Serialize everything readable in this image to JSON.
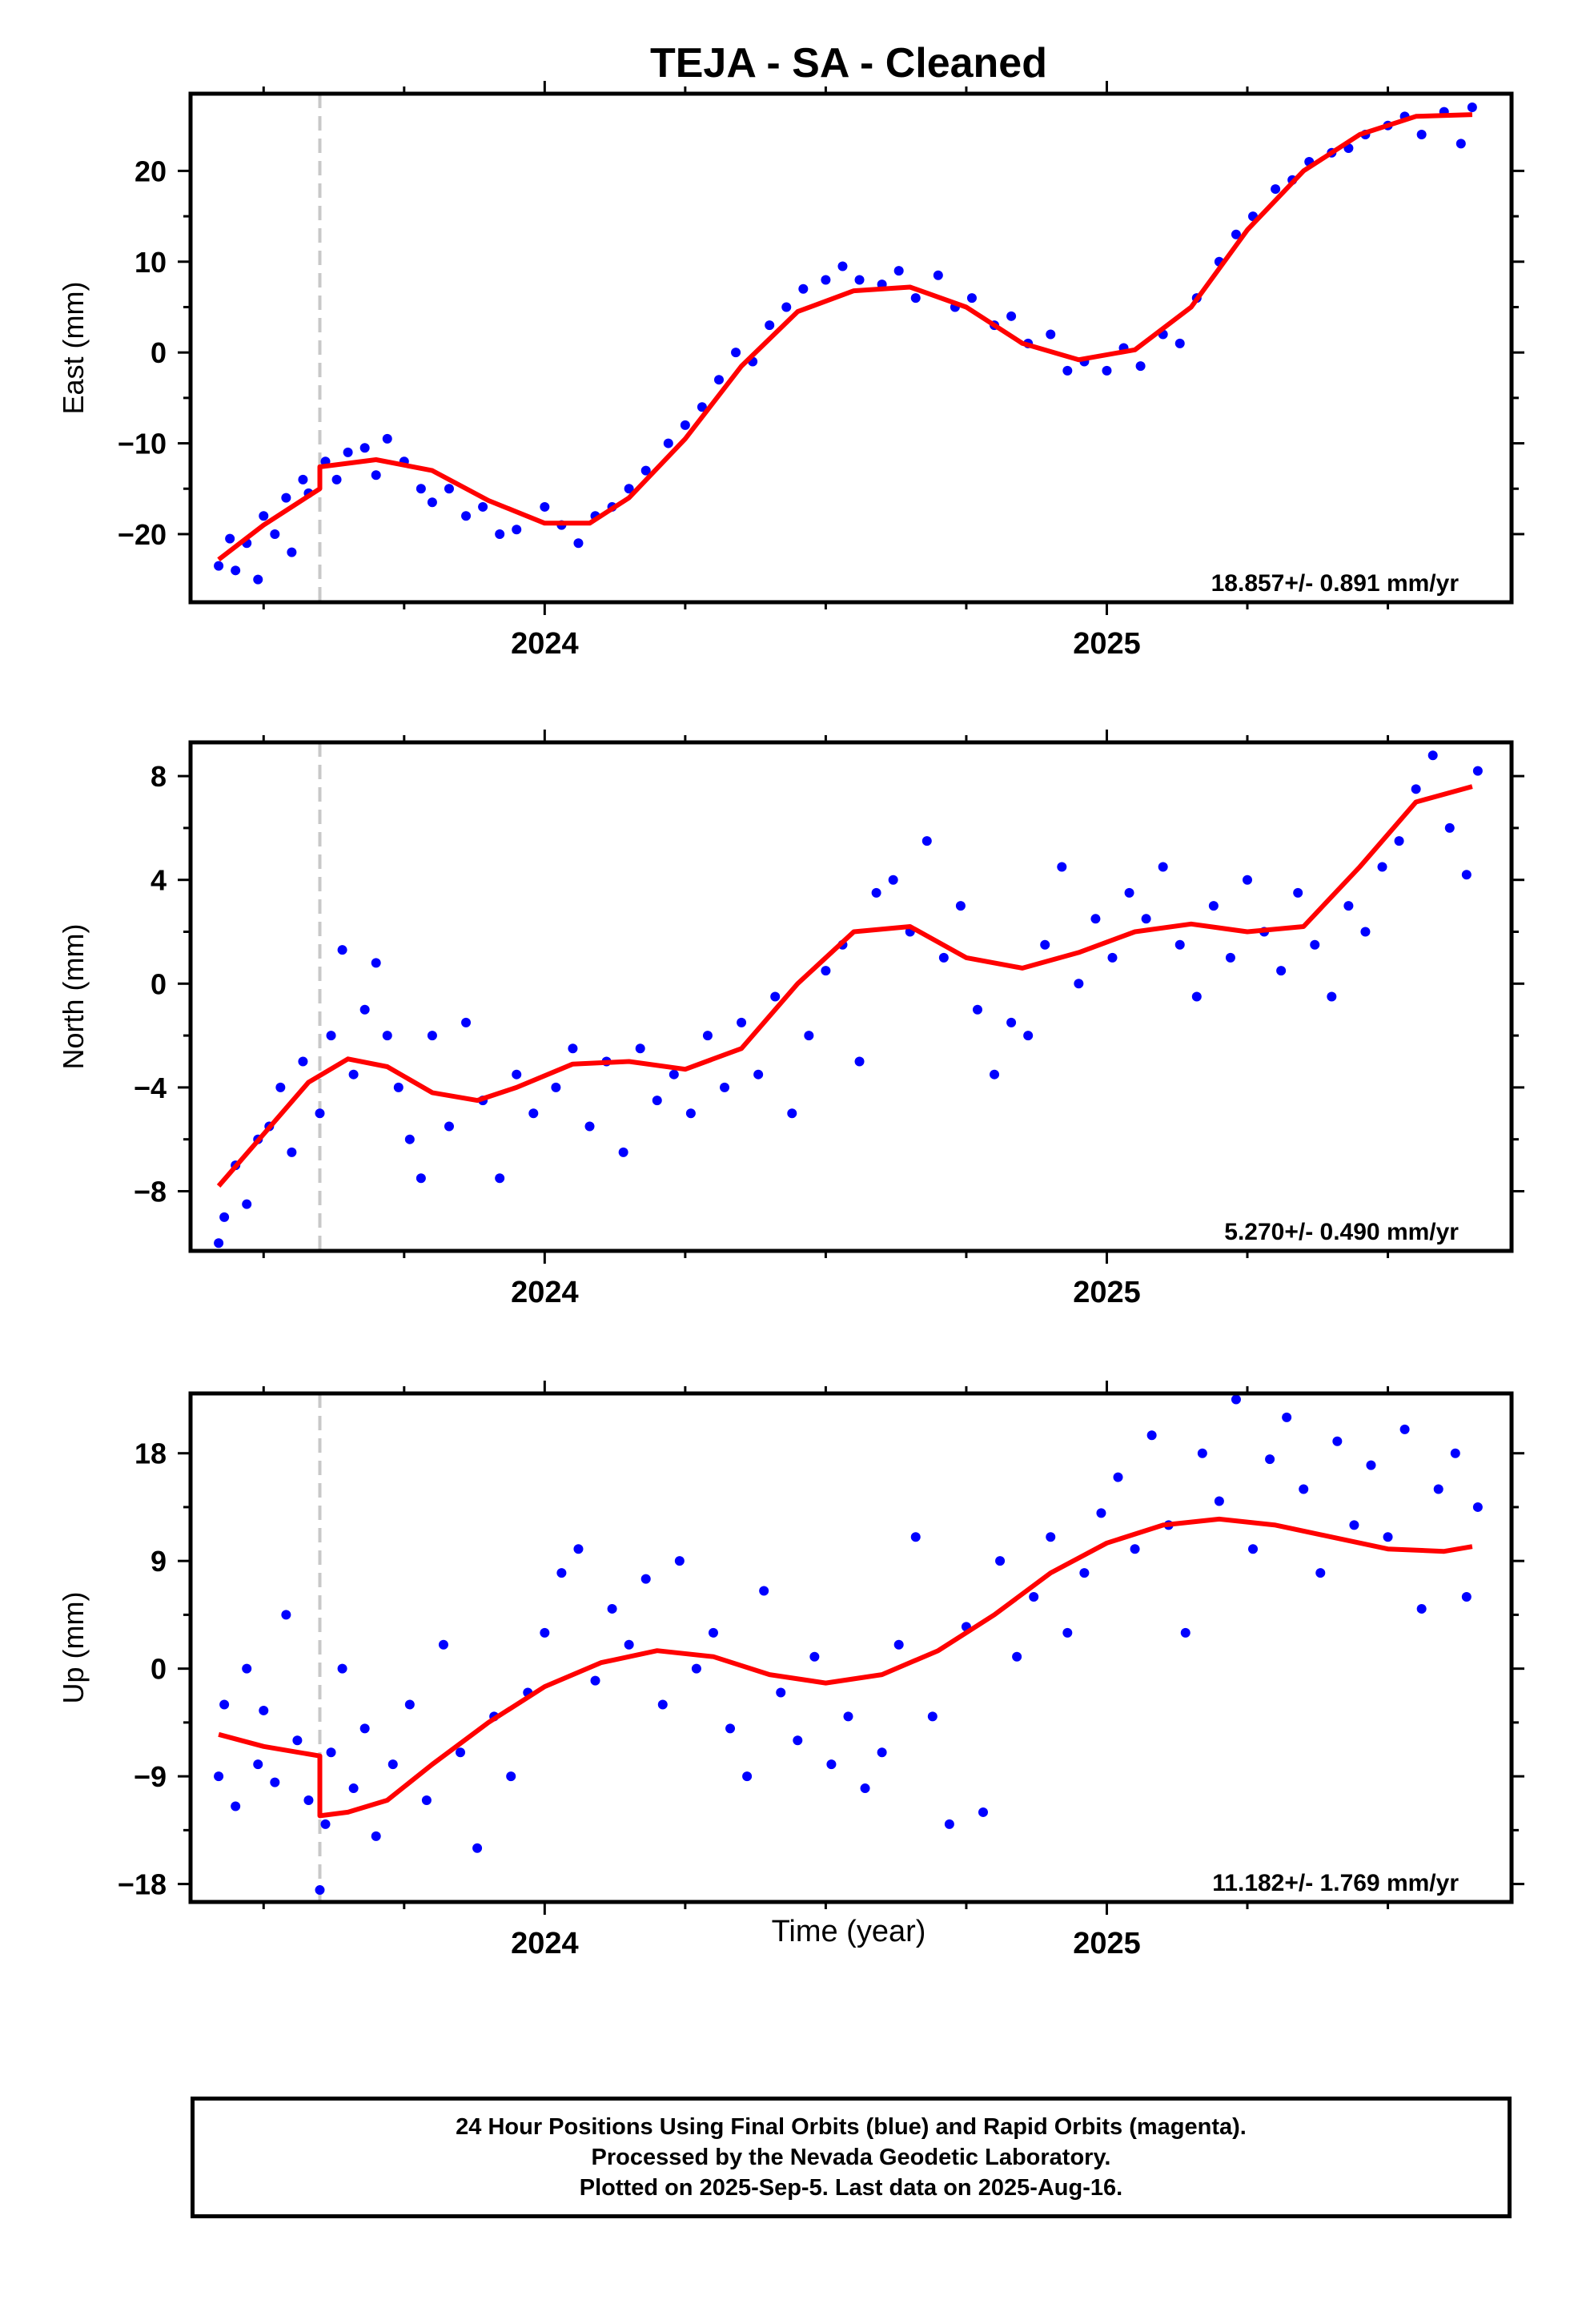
{
  "title": "TEJA  - SA - Cleaned",
  "xlabel": "Time (year)",
  "footer": {
    "line1": "24 Hour Positions Using Final Orbits (blue) and Rapid Orbits (magenta).",
    "line2": "Processed by the Nevada Geodetic Laboratory.",
    "line3": "Plotted on 2025-Sep-5. Last data on 2025-Aug-16."
  },
  "colors": {
    "points": "#0000ff",
    "fit": "#ff0000",
    "event_line": "#c8c8c8",
    "frame": "#000000"
  },
  "chart_data": [
    {
      "type": "scatter",
      "component": "east",
      "ylabel": "East (mm)",
      "xlim": [
        2023.37,
        2025.72
      ],
      "ylim": [
        -27.5,
        28.5
      ],
      "yticks": [
        -20,
        -10,
        0,
        10,
        20
      ],
      "xticks": [
        2024,
        2025
      ],
      "event_line_x": 2023.6,
      "rate_text": "18.857+/- 0.891 mm/yr",
      "series": [
        {
          "role": "fit",
          "x": [
            2023.42,
            2023.5,
            2023.6,
            2023.6,
            2023.7,
            2023.8,
            2023.9,
            2024.0,
            2024.08,
            2024.15,
            2024.25,
            2024.35,
            2024.45,
            2024.55,
            2024.65,
            2024.75,
            2024.85,
            2024.95,
            2025.05,
            2025.15,
            2025.25,
            2025.35,
            2025.45,
            2025.55,
            2025.65
          ],
          "values": [
            -22.8,
            -19.0,
            -15.0,
            -12.6,
            -11.8,
            -13.0,
            -16.3,
            -18.8,
            -18.8,
            -16.0,
            -9.5,
            -1.5,
            4.5,
            6.8,
            7.2,
            5.0,
            1.0,
            -0.8,
            0.3,
            5.0,
            13.5,
            20.0,
            24.0,
            26.0,
            26.2
          ]
        },
        {
          "role": "daily",
          "x": [
            2023.42,
            2023.44,
            2023.45,
            2023.47,
            2023.49,
            2023.5,
            2023.52,
            2023.54,
            2023.55,
            2023.57,
            2023.58,
            2023.61,
            2023.63,
            2023.65,
            2023.68,
            2023.7,
            2023.72,
            2023.75,
            2023.78,
            2023.8,
            2023.83,
            2023.86,
            2023.89,
            2023.92,
            2023.95,
            2024.0,
            2024.03,
            2024.06,
            2024.09,
            2024.12,
            2024.15,
            2024.18,
            2024.22,
            2024.25,
            2024.28,
            2024.31,
            2024.34,
            2024.37,
            2024.4,
            2024.43,
            2024.46,
            2024.5,
            2024.53,
            2024.56,
            2024.6,
            2024.63,
            2024.66,
            2024.7,
            2024.73,
            2024.76,
            2024.8,
            2024.83,
            2024.86,
            2024.9,
            2024.93,
            2024.96,
            2025.0,
            2025.03,
            2025.06,
            2025.1,
            2025.13,
            2025.16,
            2025.2,
            2025.23,
            2025.26,
            2025.3,
            2025.33,
            2025.36,
            2025.4,
            2025.43,
            2025.46,
            2025.5,
            2025.53,
            2025.56,
            2025.6,
            2025.63,
            2025.65
          ],
          "values": [
            -23.5,
            -20.5,
            -24.0,
            -21.0,
            -25.0,
            -18.0,
            -20.0,
            -16.0,
            -22.0,
            -14.0,
            -15.5,
            -12.0,
            -14.0,
            -11.0,
            -10.5,
            -13.5,
            -9.5,
            -12.0,
            -15.0,
            -16.5,
            -15.0,
            -18.0,
            -17.0,
            -20.0,
            -19.5,
            -17.0,
            -19.0,
            -21.0,
            -18.0,
            -17.0,
            -15.0,
            -13.0,
            -10.0,
            -8.0,
            -6.0,
            -3.0,
            0.0,
            -1.0,
            3.0,
            5.0,
            7.0,
            8.0,
            9.5,
            8.0,
            7.5,
            9.0,
            6.0,
            8.5,
            5.0,
            6.0,
            3.0,
            4.0,
            1.0,
            2.0,
            -2.0,
            -1.0,
            -2.0,
            0.5,
            -1.5,
            2.0,
            1.0,
            6.0,
            10.0,
            13.0,
            15.0,
            18.0,
            19.0,
            21.0,
            22.0,
            22.5,
            24.0,
            25.0,
            26.0,
            24.0,
            26.5,
            23.0,
            27.0
          ]
        }
      ]
    },
    {
      "type": "scatter",
      "component": "north",
      "ylabel": "North (mm)",
      "xlim": [
        2023.37,
        2025.72
      ],
      "ylim": [
        -10.3,
        9.3
      ],
      "yticks": [
        -8,
        -4,
        0,
        4,
        8
      ],
      "xticks": [
        2024,
        2025
      ],
      "event_line_x": 2023.6,
      "rate_text": "5.270+/- 0.490 mm/yr",
      "series": [
        {
          "role": "fit",
          "x": [
            2023.42,
            2023.5,
            2023.58,
            2023.65,
            2023.72,
            2023.8,
            2023.88,
            2023.95,
            2024.05,
            2024.15,
            2024.25,
            2024.35,
            2024.45,
            2024.55,
            2024.65,
            2024.75,
            2024.85,
            2024.95,
            2025.05,
            2025.15,
            2025.25,
            2025.35,
            2025.45,
            2025.55,
            2025.65
          ],
          "values": [
            -7.8,
            -5.8,
            -3.8,
            -2.9,
            -3.2,
            -4.2,
            -4.5,
            -4.0,
            -3.1,
            -3.0,
            -3.3,
            -2.5,
            0.0,
            2.0,
            2.2,
            1.0,
            0.6,
            1.2,
            2.0,
            2.3,
            2.0,
            2.2,
            4.5,
            7.0,
            7.6
          ]
        },
        {
          "role": "daily",
          "x": [
            2023.42,
            2023.43,
            2023.45,
            2023.47,
            2023.49,
            2023.51,
            2023.53,
            2023.55,
            2023.57,
            2023.6,
            2023.62,
            2023.64,
            2023.66,
            2023.68,
            2023.7,
            2023.72,
            2023.74,
            2023.76,
            2023.78,
            2023.8,
            2023.83,
            2023.86,
            2023.89,
            2023.92,
            2023.95,
            2023.98,
            2024.02,
            2024.05,
            2024.08,
            2024.11,
            2024.14,
            2024.17,
            2024.2,
            2024.23,
            2024.26,
            2024.29,
            2024.32,
            2024.35,
            2024.38,
            2024.41,
            2024.44,
            2024.47,
            2024.5,
            2024.53,
            2024.56,
            2024.59,
            2024.62,
            2024.65,
            2024.68,
            2024.71,
            2024.74,
            2024.77,
            2024.8,
            2024.83,
            2024.86,
            2024.89,
            2024.92,
            2024.95,
            2024.98,
            2025.01,
            2025.04,
            2025.07,
            2025.1,
            2025.13,
            2025.16,
            2025.19,
            2025.22,
            2025.25,
            2025.28,
            2025.31,
            2025.34,
            2025.37,
            2025.4,
            2025.43,
            2025.46,
            2025.49,
            2025.52,
            2025.55,
            2025.58,
            2025.61,
            2025.64,
            2025.66
          ],
          "values": [
            -10.0,
            -9.0,
            -7.0,
            -8.5,
            -6.0,
            -5.5,
            -4.0,
            -6.5,
            -3.0,
            -5.0,
            -2.0,
            1.3,
            -3.5,
            -1.0,
            0.8,
            -2.0,
            -4.0,
            -6.0,
            -7.5,
            -2.0,
            -5.5,
            -1.5,
            -4.5,
            -7.5,
            -3.5,
            -5.0,
            -4.0,
            -2.5,
            -5.5,
            -3.0,
            -6.5,
            -2.5,
            -4.5,
            -3.5,
            -5.0,
            -2.0,
            -4.0,
            -1.5,
            -3.5,
            -0.5,
            -5.0,
            -2.0,
            0.5,
            1.5,
            -3.0,
            3.5,
            4.0,
            2.0,
            5.5,
            1.0,
            3.0,
            -1.0,
            -3.5,
            -1.5,
            -2.0,
            1.5,
            4.5,
            0.0,
            2.5,
            1.0,
            3.5,
            2.5,
            4.5,
            1.5,
            -0.5,
            3.0,
            1.0,
            4.0,
            2.0,
            0.5,
            3.5,
            1.5,
            -0.5,
            3.0,
            2.0,
            4.5,
            5.5,
            7.5,
            8.8,
            6.0,
            4.2,
            8.2
          ]
        }
      ]
    },
    {
      "type": "scatter",
      "component": "up",
      "ylabel": "Up (mm)",
      "xlim": [
        2023.37,
        2025.72
      ],
      "ylim": [
        -19.5,
        23.0
      ],
      "yticks": [
        -18,
        -9,
        0,
        9,
        18
      ],
      "xticks": [
        2024,
        2025
      ],
      "event_line_x": 2023.6,
      "rate_text": "11.182+/- 1.769 mm/yr",
      "series": [
        {
          "role": "fit",
          "x": [
            2023.42,
            2023.5,
            2023.6,
            2023.6,
            2023.65,
            2023.72,
            2023.8,
            2023.9,
            2024.0,
            2024.1,
            2024.2,
            2024.3,
            2024.4,
            2024.5,
            2024.6,
            2024.7,
            2024.8,
            2024.9,
            2025.0,
            2025.1,
            2025.2,
            2025.3,
            2025.4,
            2025.5,
            2025.6,
            2025.65
          ],
          "values": [
            -5.5,
            -6.5,
            -7.3,
            -12.3,
            -12.0,
            -11.0,
            -8.0,
            -4.5,
            -1.5,
            0.5,
            1.5,
            1.0,
            -0.5,
            -1.2,
            -0.5,
            1.5,
            4.5,
            8.0,
            10.5,
            12.0,
            12.5,
            12.0,
            11.0,
            10.0,
            9.8,
            10.2
          ]
        },
        {
          "role": "daily",
          "x": [
            2023.42,
            2023.43,
            2023.45,
            2023.47,
            2023.49,
            2023.5,
            2023.52,
            2023.54,
            2023.56,
            2023.58,
            2023.6,
            2023.61,
            2023.62,
            2023.64,
            2023.66,
            2023.68,
            2023.7,
            2023.73,
            2023.76,
            2023.79,
            2023.82,
            2023.85,
            2023.88,
            2023.91,
            2023.94,
            2023.97,
            2024.0,
            2024.03,
            2024.06,
            2024.09,
            2024.12,
            2024.15,
            2024.18,
            2024.21,
            2024.24,
            2024.27,
            2024.3,
            2024.33,
            2024.36,
            2024.39,
            2024.42,
            2024.45,
            2024.48,
            2024.51,
            2024.54,
            2024.57,
            2024.6,
            2024.63,
            2024.66,
            2024.69,
            2024.72,
            2024.75,
            2024.78,
            2024.81,
            2024.84,
            2024.87,
            2024.9,
            2024.93,
            2024.96,
            2024.99,
            2025.02,
            2025.05,
            2025.08,
            2025.11,
            2025.14,
            2025.17,
            2025.2,
            2025.23,
            2025.26,
            2025.29,
            2025.32,
            2025.35,
            2025.38,
            2025.41,
            2025.44,
            2025.47,
            2025.5,
            2025.53,
            2025.56,
            2025.59,
            2025.62,
            2025.64,
            2025.66
          ],
          "values": [
            -9.0,
            -3.0,
            -11.5,
            0.0,
            -8.0,
            -3.5,
            -9.5,
            4.5,
            -6.0,
            -11.0,
            -18.5,
            -13.0,
            -7.0,
            0.0,
            -10.0,
            -5.0,
            -14.0,
            -8.0,
            -3.0,
            -11.0,
            2.0,
            -7.0,
            -15.0,
            -4.0,
            -9.0,
            -2.0,
            3.0,
            8.0,
            10.0,
            -1.0,
            5.0,
            2.0,
            7.5,
            -3.0,
            9.0,
            0.0,
            3.0,
            -5.0,
            -9.0,
            6.5,
            -2.0,
            -6.0,
            1.0,
            -8.0,
            -4.0,
            -10.0,
            -7.0,
            2.0,
            11.0,
            -4.0,
            -13.0,
            3.5,
            -12.0,
            9.0,
            1.0,
            6.0,
            11.0,
            3.0,
            8.0,
            13.0,
            16.0,
            10.0,
            19.5,
            12.0,
            3.0,
            18.0,
            14.0,
            22.5,
            10.0,
            17.5,
            21.0,
            15.0,
            8.0,
            19.0,
            12.0,
            17.0,
            11.0,
            20.0,
            5.0,
            15.0,
            18.0,
            6.0,
            13.5
          ]
        }
      ]
    }
  ]
}
